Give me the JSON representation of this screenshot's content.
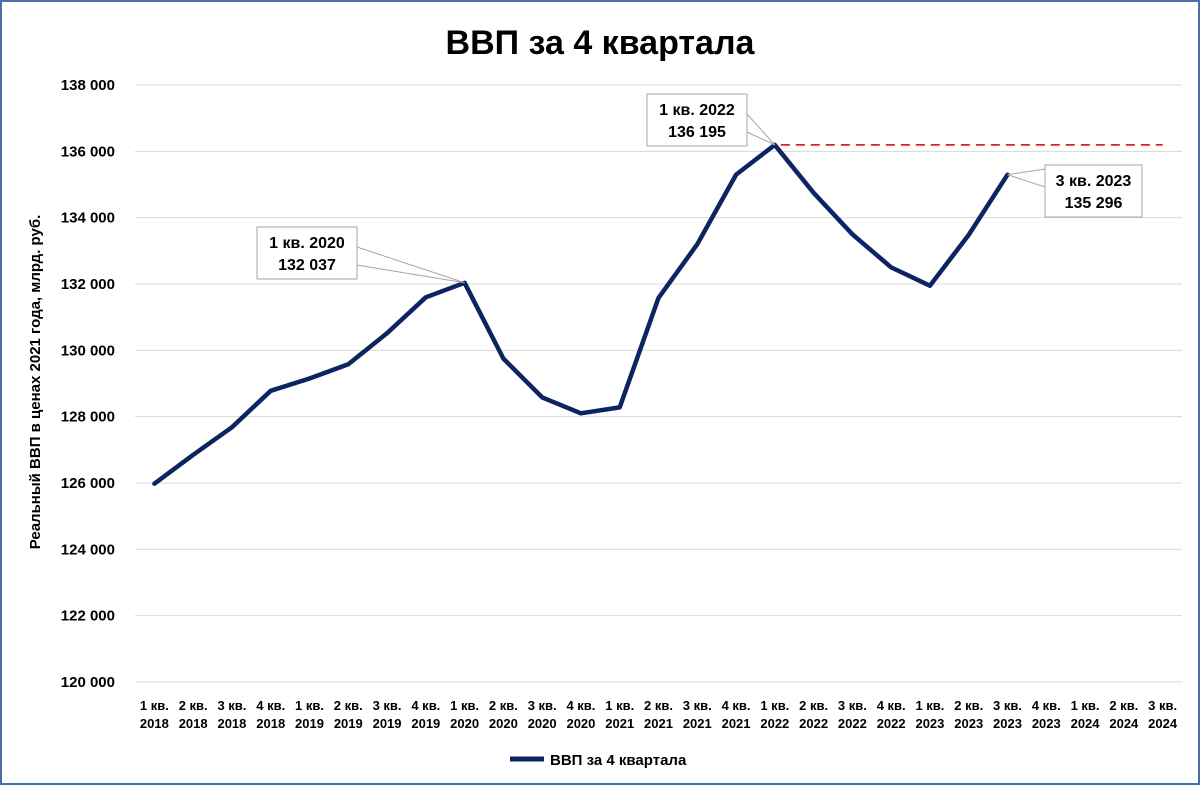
{
  "chart_data": {
    "type": "line",
    "title": "ВВП за 4 квартала",
    "ylabel": "Реальный ВВП в ценах 2021 года, млрд. руб.",
    "xlabel": "",
    "ylim": [
      120000,
      138000
    ],
    "yticks": [
      120000,
      122000,
      124000,
      126000,
      128000,
      130000,
      132000,
      134000,
      136000,
      138000
    ],
    "ytick_labels": [
      "120 000",
      "122 000",
      "124 000",
      "126 000",
      "128 000",
      "130 000",
      "132 000",
      "134 000",
      "136 000",
      "138 000"
    ],
    "grid": true,
    "legend": "bottom",
    "categories": [
      [
        "1 кв.",
        "2018"
      ],
      [
        "2 кв.",
        "2018"
      ],
      [
        "3 кв.",
        "2018"
      ],
      [
        "4 кв.",
        "2018"
      ],
      [
        "1 кв.",
        "2019"
      ],
      [
        "2 кв.",
        "2019"
      ],
      [
        "3 кв.",
        "2019"
      ],
      [
        "4 кв.",
        "2019"
      ],
      [
        "1 кв.",
        "2020"
      ],
      [
        "2 кв.",
        "2020"
      ],
      [
        "3 кв.",
        "2020"
      ],
      [
        "4 кв.",
        "2020"
      ],
      [
        "1 кв.",
        "2021"
      ],
      [
        "2 кв.",
        "2021"
      ],
      [
        "3 кв.",
        "2021"
      ],
      [
        "4 кв.",
        "2021"
      ],
      [
        "1 кв.",
        "2022"
      ],
      [
        "2 кв.",
        "2022"
      ],
      [
        "3 кв.",
        "2022"
      ],
      [
        "4 кв.",
        "2022"
      ],
      [
        "1 кв.",
        "2023"
      ],
      [
        "2 кв.",
        "2023"
      ],
      [
        "3 кв.",
        "2023"
      ],
      [
        "4 кв.",
        "2023"
      ],
      [
        "1 кв.",
        "2024"
      ],
      [
        "2 кв.",
        "2024"
      ],
      [
        "3 кв.",
        "2024"
      ]
    ],
    "series": [
      {
        "name": "ВВП за 4 квартала",
        "color": "#0c2461",
        "values": [
          125980,
          126850,
          127680,
          128780,
          129150,
          129580,
          130520,
          131600,
          132037,
          129750,
          128580,
          128100,
          128280,
          131580,
          133200,
          135300,
          136195,
          134750,
          133500,
          132500,
          131950,
          133480,
          135296,
          null,
          null,
          null,
          null
        ]
      }
    ],
    "reference_line": {
      "value": 136195,
      "from_index": 16,
      "to_index": 26,
      "color": "#d62728",
      "style": "dashed"
    },
    "annotations": [
      {
        "index": 8,
        "line1": "1 кв. 2020",
        "line2": "132 037"
      },
      {
        "index": 16,
        "line1": "1 кв. 2022",
        "line2": "136 195"
      },
      {
        "index": 22,
        "line1": "3 кв. 2023",
        "line2": "135 296"
      }
    ]
  }
}
